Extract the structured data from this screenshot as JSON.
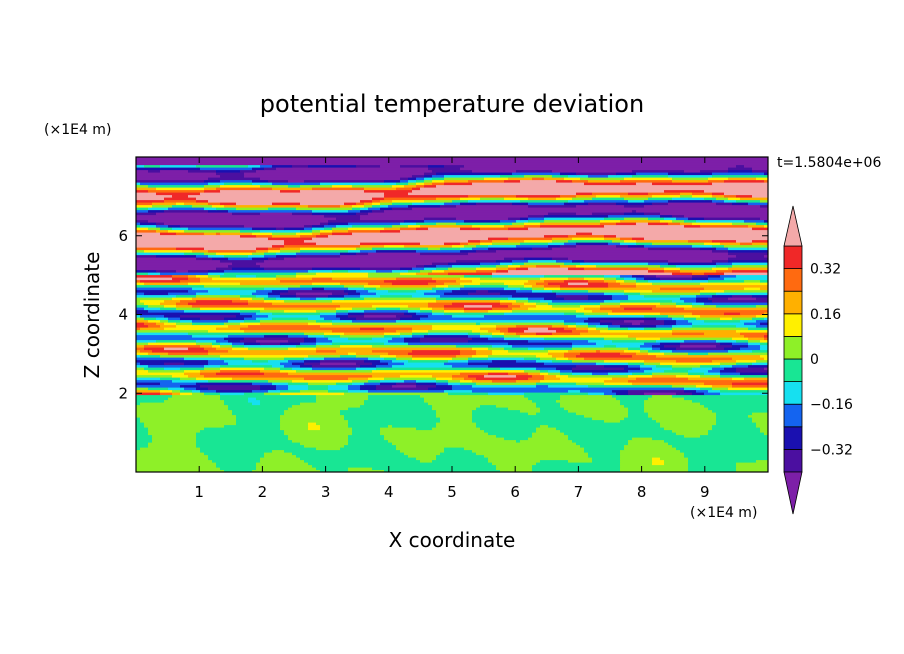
{
  "chart_data": {
    "type": "heatmap",
    "title": "potential temperature deviation",
    "xlabel": "X coordinate",
    "ylabel": "Z coordinate",
    "x_unit": "(×1E4 m)",
    "y_unit": "(×1E4 m)",
    "time_label": "t=1.5804e+06",
    "xlim": [
      0,
      10
    ],
    "ylim": [
      0,
      8
    ],
    "x_ticks": [
      "1",
      "2",
      "3",
      "4",
      "5",
      "6",
      "7",
      "8",
      "9"
    ],
    "y_ticks": [
      "2",
      "4",
      "6"
    ],
    "colorbar": {
      "levels": [
        -0.4,
        -0.32,
        -0.24,
        -0.16,
        -0.08,
        0,
        0.08,
        0.16,
        0.24,
        0.32,
        0.4
      ],
      "labels": [
        "0.32",
        "0.16",
        "0",
        "−0.16",
        "−0.32"
      ],
      "label_values": [
        0.32,
        0.16,
        0,
        -0.16,
        -0.32
      ],
      "extend": "both",
      "colors": {
        "over": "#f4a9a9",
        "under": "#7d1fa8",
        "bands": [
          "#4b0fa0",
          "#1a10b0",
          "#1464f0",
          "#16e0f0",
          "#18e694",
          "#8ef028",
          "#fff000",
          "#ffb000",
          "#ff6a10",
          "#f02828"
        ]
      }
    },
    "grid": false,
    "layers": [
      {
        "z": [
          0.0,
          2.0
        ],
        "description_values": "mostly between -0.08 and 0.08"
      },
      {
        "z": [
          2.0,
          5.0
        ],
        "description_values": "alternating thin layers across all levels"
      },
      {
        "z": [
          5.0,
          8.0
        ],
        "description_values": "strong bands: below -0.40 and above 0.40 dominant"
      }
    ]
  }
}
